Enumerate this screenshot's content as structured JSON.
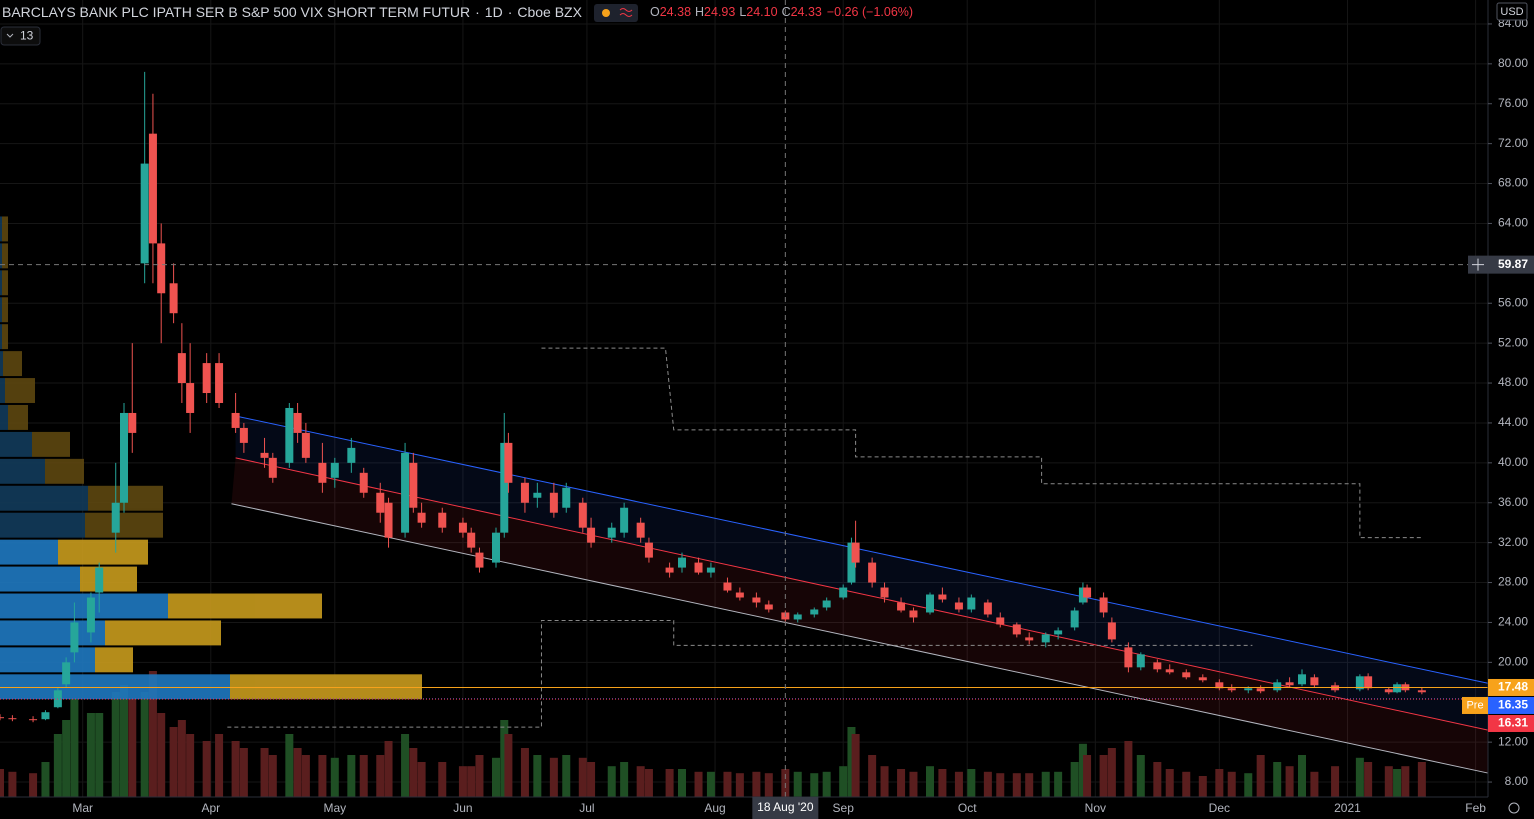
{
  "header": {
    "title": "BARCLAYS BANK PLC IPATH SER B S&P 500 VIX SHORT TERM FUTUR",
    "separator": "·",
    "interval": "1D",
    "exchange": "Cboe BZX",
    "ohlc": [
      {
        "label": "O",
        "value": "24.38"
      },
      {
        "label": "H",
        "value": "24.93"
      },
      {
        "label": "L",
        "value": "24.10"
      },
      {
        "label": "C",
        "value": "24.33"
      }
    ],
    "change": "−0.26 (−1.06%)",
    "indicator_count": "13",
    "currency": "USD"
  },
  "chart_data": {
    "type": "candlestick",
    "up_color": "#26a69a",
    "down_color": "#ef5350",
    "volume_up_color": "#1f4f24",
    "volume_down_color": "#5a1e1e",
    "grid": true,
    "xlim": [
      "2020-02-10",
      "2021-02-04"
    ],
    "ylim": [
      6.2,
      86.4
    ],
    "vlim": [
      0,
      100
    ],
    "xticks": [
      {
        "value": "2020-03-01",
        "label": "Mar"
      },
      {
        "value": "2020-04-01",
        "label": "Apr"
      },
      {
        "value": "2020-05-01",
        "label": "May"
      },
      {
        "value": "2020-06-01",
        "label": "Jun"
      },
      {
        "value": "2020-07-01",
        "label": "Jul"
      },
      {
        "value": "2020-08-01",
        "label": "Aug"
      },
      {
        "value": "2020-09-01",
        "label": "Sep"
      },
      {
        "value": "2020-10-01",
        "label": "Oct"
      },
      {
        "value": "2020-11-01",
        "label": "Nov"
      },
      {
        "value": "2020-12-01",
        "label": "Dec"
      },
      {
        "value": "2021-01-01",
        "label": "2021"
      },
      {
        "value": "2021-02-01",
        "label": "Feb"
      }
    ],
    "yticks": [
      {
        "value": 8,
        "label": "8.00"
      },
      {
        "value": 12,
        "label": "12.00"
      },
      {
        "value": 20,
        "label": "20.00"
      },
      {
        "value": 24,
        "label": "24.00"
      },
      {
        "value": 28,
        "label": "28.00"
      },
      {
        "value": 32,
        "label": "32.00"
      },
      {
        "value": 36,
        "label": "36.00"
      },
      {
        "value": 40,
        "label": "40.00"
      },
      {
        "value": 44,
        "label": "44.00"
      },
      {
        "value": 48,
        "label": "48.00"
      },
      {
        "value": 52,
        "label": "52.00"
      },
      {
        "value": 56,
        "label": "56.00"
      },
      {
        "value": 64,
        "label": "64.00"
      },
      {
        "value": 68,
        "label": "68.00"
      },
      {
        "value": 72,
        "label": "72.00"
      },
      {
        "value": 76,
        "label": "76.00"
      },
      {
        "value": 80,
        "label": "80.00"
      },
      {
        "value": 84,
        "label": "84.00"
      }
    ],
    "x": [
      "2020-02-10",
      "2020-02-13",
      "2020-02-18",
      "2020-02-21",
      "2020-02-24",
      "2020-02-26",
      "2020-02-28",
      "2020-03-03",
      "2020-03-05",
      "2020-03-09",
      "2020-03-11",
      "2020-03-13",
      "2020-03-16",
      "2020-03-18",
      "2020-03-20",
      "2020-03-23",
      "2020-03-25",
      "2020-03-27",
      "2020-03-31",
      "2020-04-03",
      "2020-04-07",
      "2020-04-09",
      "2020-04-14",
      "2020-04-16",
      "2020-04-20",
      "2020-04-22",
      "2020-04-24",
      "2020-04-28",
      "2020-05-01",
      "2020-05-05",
      "2020-05-08",
      "2020-05-12",
      "2020-05-14",
      "2020-05-18",
      "2020-05-20",
      "2020-05-22",
      "2020-05-27",
      "2020-06-01",
      "2020-06-03",
      "2020-06-05",
      "2020-06-09",
      "2020-06-11",
      "2020-06-12",
      "2020-06-16",
      "2020-06-19",
      "2020-06-23",
      "2020-06-26",
      "2020-06-30",
      "2020-07-02",
      "2020-07-07",
      "2020-07-10",
      "2020-07-14",
      "2020-07-16",
      "2020-07-21",
      "2020-07-24",
      "2020-07-28",
      "2020-07-31",
      "2020-08-04",
      "2020-08-07",
      "2020-08-11",
      "2020-08-14",
      "2020-08-18",
      "2020-08-21",
      "2020-08-25",
      "2020-08-28",
      "2020-09-01",
      "2020-09-03",
      "2020-09-04",
      "2020-09-08",
      "2020-09-11",
      "2020-09-15",
      "2020-09-18",
      "2020-09-22",
      "2020-09-25",
      "2020-09-29",
      "2020-10-02",
      "2020-10-06",
      "2020-10-09",
      "2020-10-13",
      "2020-10-16",
      "2020-10-20",
      "2020-10-23",
      "2020-10-27",
      "2020-10-29",
      "2020-10-30",
      "2020-11-03",
      "2020-11-05",
      "2020-11-09",
      "2020-11-12",
      "2020-11-16",
      "2020-11-19",
      "2020-11-23",
      "2020-11-27",
      "2020-12-01",
      "2020-12-04",
      "2020-12-08",
      "2020-12-11",
      "2020-12-15",
      "2020-12-18",
      "2020-12-21",
      "2020-12-24",
      "2020-12-29",
      "2021-01-04",
      "2021-01-06",
      "2021-01-11",
      "2021-01-13",
      "2021-01-15",
      "2021-01-19"
    ],
    "open": [
      14.5,
      14.4,
      14.3,
      14.3,
      15.5,
      17.8,
      21,
      23,
      27,
      33,
      36,
      45,
      60,
      73,
      62,
      58,
      51,
      48,
      50,
      50,
      45,
      43.5,
      41,
      40.5,
      40,
      45,
      43,
      40,
      38.5,
      40,
      39,
      37,
      36,
      33,
      40,
      35,
      35,
      34,
      33,
      31,
      30,
      33,
      42,
      38,
      36.5,
      37,
      35.5,
      36,
      33.5,
      32.5,
      33,
      34,
      32,
      29.5,
      29.5,
      30,
      29,
      28,
      27,
      26.5,
      25.8,
      25,
      24.3,
      24.8,
      25.5,
      26.5,
      28,
      32,
      30,
      27.5,
      26,
      25.2,
      25,
      26.8,
      26,
      25.3,
      26,
      24.5,
      23.8,
      22.5,
      22,
      22.8,
      23.5,
      26,
      27.5,
      26.5,
      24,
      21.5,
      19.5,
      20,
      19.3,
      19,
      18.5,
      18,
      17.4,
      17.2,
      17.4,
      17.2,
      18,
      17.8,
      18.5,
      17.7,
      17.3,
      18.6,
      17.3,
      17,
      17.8,
      17.2
    ],
    "high": [
      14.8,
      14.7,
      14.6,
      15.2,
      17.5,
      20.5,
      26,
      27,
      30,
      40,
      46,
      52,
      79.2,
      77,
      64,
      60,
      54,
      52,
      51,
      51,
      47,
      44,
      42.5,
      41,
      46,
      46,
      44,
      42,
      40.5,
      42.5,
      39.5,
      38,
      36.5,
      42,
      41,
      36,
      35.5,
      34.5,
      33.5,
      31.5,
      33.5,
      45,
      43,
      38.5,
      38,
      38,
      38,
      36.5,
      34.5,
      34,
      36,
      34.5,
      32.5,
      30,
      31,
      30.5,
      30,
      28.5,
      27.5,
      27,
      26.2,
      25.2,
      25,
      25.5,
      26.5,
      27.8,
      32.5,
      34.2,
      30.5,
      28,
      26.5,
      25.5,
      27,
      27.5,
      26.5,
      26.8,
      26.3,
      25,
      24,
      23,
      23,
      23.5,
      25.5,
      28,
      27.8,
      27,
      24.5,
      22,
      21,
      20.3,
      19.8,
      19.3,
      18.8,
      18.3,
      17.8,
      17.6,
      17.7,
      18.3,
      18.5,
      19.3,
      18.8,
      18,
      18.8,
      18.9,
      17.5,
      18,
      18,
      17.5
    ],
    "low": [
      14.2,
      14.1,
      14.0,
      14.2,
      15.4,
      17.5,
      20,
      22,
      25,
      31,
      35,
      41,
      58,
      58,
      52,
      54,
      46,
      43,
      46,
      45.5,
      43,
      41,
      39.5,
      38,
      39.5,
      42,
      40,
      37,
      37.5,
      39,
      36.5,
      34,
      31.5,
      32.5,
      35,
      33.5,
      33,
      32.5,
      31,
      29,
      29.5,
      32.5,
      37,
      35,
      35.5,
      34.5,
      35,
      33,
      31.5,
      32,
      32.5,
      32,
      30,
      28.5,
      29,
      28.8,
      28.5,
      27,
      26.2,
      25.5,
      25,
      24,
      24,
      24.5,
      25.2,
      26.3,
      27.8,
      29.5,
      27.5,
      26,
      25,
      24,
      24.8,
      26,
      25,
      25,
      24.5,
      23.5,
      22.5,
      21.8,
      21.5,
      22.3,
      23.2,
      25.8,
      26,
      24.5,
      22,
      19,
      19.2,
      19,
      18.8,
      18.3,
      18,
      17.2,
      17,
      16.9,
      16.9,
      17,
      17.5,
      17.6,
      17.5,
      17,
      17.1,
      17.2,
      16.8,
      16.9,
      17,
      16.8
    ],
    "close": [
      14.4,
      14.3,
      14.2,
      15.0,
      17.2,
      20.0,
      24,
      26.5,
      29.5,
      36,
      45,
      43,
      70,
      62,
      57,
      55,
      48,
      45,
      47,
      46,
      43.5,
      42,
      40.5,
      38.5,
      45.5,
      43,
      40.5,
      38,
      40,
      41.5,
      37,
      35,
      32.5,
      41,
      35.5,
      34,
      33.5,
      33,
      31.5,
      29.5,
      33,
      42,
      38,
      36,
      37,
      35,
      37.5,
      33.5,
      32,
      33.5,
      35.5,
      32.5,
      30.5,
      29,
      30.5,
      29,
      29.5,
      27.2,
      26.5,
      26,
      25.3,
      24.3,
      24.8,
      25.3,
      26.2,
      27.5,
      32,
      30,
      28,
      26.5,
      25.2,
      24.5,
      26.8,
      26.3,
      25.3,
      26.5,
      24.8,
      23.8,
      22.8,
      22.2,
      22.8,
      23.2,
      25.2,
      27.5,
      26.5,
      25,
      22.3,
      19.5,
      20.8,
      19.3,
      19,
      18.5,
      18.2,
      17.4,
      17.2,
      17.4,
      17.1,
      18,
      17.7,
      18.8,
      17.7,
      17.2,
      18.6,
      17.4,
      17,
      17.8,
      17.2,
      17
    ],
    "volume": [
      20,
      18,
      17,
      25,
      45,
      55,
      70,
      60,
      60,
      75,
      80,
      70,
      75,
      90,
      60,
      50,
      55,
      45,
      40,
      45,
      40,
      35,
      35,
      30,
      45,
      35,
      30,
      30,
      28,
      30,
      30,
      30,
      40,
      45,
      35,
      25,
      25,
      22,
      22,
      30,
      28,
      55,
      45,
      35,
      30,
      28,
      30,
      28,
      25,
      22,
      25,
      22,
      20,
      20,
      20,
      18,
      18,
      18,
      17,
      18,
      17,
      20,
      18,
      17,
      18,
      22,
      50,
      45,
      30,
      22,
      20,
      18,
      22,
      20,
      18,
      20,
      18,
      17,
      17,
      17,
      18,
      18,
      25,
      38,
      30,
      30,
      35,
      40,
      30,
      25,
      20,
      18,
      15,
      20,
      18,
      17,
      30,
      25,
      22,
      30,
      18,
      22,
      28,
      25,
      22,
      20,
      22,
      25
    ],
    "volume_profile": {
      "up_color": "#1f77bd",
      "down_color": "#c4981d",
      "outside_up_color": "#123a59",
      "outside_down_color": "#5c4610",
      "value_area": [
        16.2,
        32.4
      ],
      "rows": [
        {
          "low": 16.2,
          "high": 18.9,
          "up": 230,
          "down": 192
        },
        {
          "low": 18.9,
          "high": 21.6,
          "up": 95,
          "down": 38
        },
        {
          "low": 21.6,
          "high": 24.3,
          "up": 105,
          "down": 116
        },
        {
          "low": 24.3,
          "high": 27.0,
          "up": 168,
          "down": 154
        },
        {
          "low": 27.0,
          "high": 29.7,
          "up": 80,
          "down": 57
        },
        {
          "low": 29.7,
          "high": 32.4,
          "up": 58,
          "down": 90
        },
        {
          "low": 32.4,
          "high": 35.1,
          "up": 85,
          "down": 78
        },
        {
          "low": 35.1,
          "high": 37.8,
          "up": 88,
          "down": 75
        },
        {
          "low": 37.8,
          "high": 40.5,
          "up": 45,
          "down": 39
        },
        {
          "low": 40.5,
          "high": 43.2,
          "up": 32,
          "down": 38
        },
        {
          "low": 43.2,
          "high": 45.9,
          "up": 8,
          "down": 20
        },
        {
          "low": 45.9,
          "high": 48.6,
          "up": 5,
          "down": 30
        },
        {
          "low": 48.6,
          "high": 51.3,
          "up": 3,
          "down": 19
        },
        {
          "low": 51.3,
          "high": 54.0,
          "up": 2,
          "down": 6
        },
        {
          "low": 54.0,
          "high": 56.7,
          "up": 2,
          "down": 6
        },
        {
          "low": 56.7,
          "high": 59.4,
          "up": 2,
          "down": 6
        },
        {
          "low": 59.4,
          "high": 62.1,
          "up": 2,
          "down": 6
        },
        {
          "low": 62.1,
          "high": 64.8,
          "up": 2,
          "down": 6
        }
      ]
    },
    "channels": [
      {
        "color": "#2962ff",
        "fill": "#2962ff",
        "points": [
          {
            "x": "2020-04-07",
            "y": 44.7
          },
          {
            "x": "2021-02-04",
            "y": 17.9
          }
        ]
      },
      {
        "color": "#f23645",
        "fill": "#f23645",
        "points": [
          {
            "x": "2020-04-07",
            "y": 40.5
          },
          {
            "x": "2021-02-04",
            "y": 13.2
          }
        ]
      },
      {
        "color": "#b2b5be",
        "points": [
          {
            "x": "2020-04-06",
            "y": 35.9
          },
          {
            "x": "2021-02-04",
            "y": 8.9
          }
        ]
      }
    ],
    "step_lines": [
      {
        "color": "#8a8a8a",
        "points": [
          {
            "x": "2020-06-20",
            "y": 51.5
          },
          {
            "x": "2020-07-20",
            "y": 51.5
          },
          {
            "x": "2020-07-22",
            "y": 43.3
          },
          {
            "x": "2020-09-04",
            "y": 43.3
          },
          {
            "x": "2020-09-04",
            "y": 40.6
          },
          {
            "x": "2020-10-19",
            "y": 40.6
          },
          {
            "x": "2020-10-19",
            "y": 37.9
          },
          {
            "x": "2021-01-04",
            "y": 37.9
          },
          {
            "x": "2021-01-04",
            "y": 32.5
          },
          {
            "x": "2021-01-19",
            "y": 32.5
          }
        ]
      },
      {
        "color": "#8a8a8a",
        "points": [
          {
            "x": "2020-04-05",
            "y": 13.5
          },
          {
            "x": "2020-06-20",
            "y": 13.5
          },
          {
            "x": "2020-06-20",
            "y": 24.2
          },
          {
            "x": "2020-07-22",
            "y": 24.2
          },
          {
            "x": "2020-07-22",
            "y": 21.7
          },
          {
            "x": "2020-12-09",
            "y": 21.7
          }
        ]
      }
    ],
    "price_lines": [
      {
        "value": 17.48,
        "label": "17.48",
        "color": "#f7a21b"
      },
      {
        "value": 16.35,
        "label": "16.35",
        "tag": "Pre",
        "color": "#2962ff"
      },
      {
        "value": 16.31,
        "label": "16.31",
        "color": "#f23645"
      }
    ],
    "crosshair": {
      "price": {
        "value": 59.87,
        "label": "59.87"
      },
      "date": {
        "value": "2020-08-18",
        "label": "18 Aug '20"
      }
    }
  }
}
